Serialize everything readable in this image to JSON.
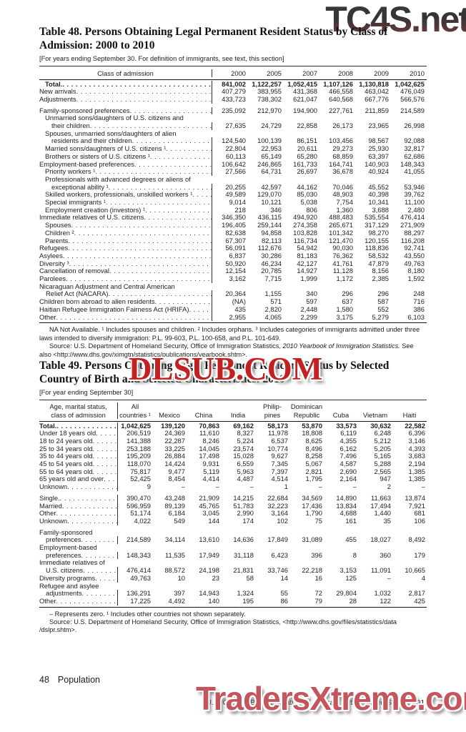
{
  "watermarks": {
    "top": "TC4S.net",
    "middle": "DLSUB.COM",
    "bottom": "TradersXtreme.com"
  },
  "table48": {
    "title": [
      "Table 48. Persons Obtaining Legal Permanent Resident Status by Class of",
      "Admission: 2000 to 2010"
    ],
    "note": "[For years ending September 30. For definition of immigrants, see text, this section]",
    "header": {
      "stub": [
        "Class of admission"
      ],
      "lines": [
        [
          "2000",
          "2005",
          "2007",
          "2008",
          "2009",
          "2010"
        ]
      ]
    },
    "rows": [
      {
        "lines": [
          "Total."
        ],
        "indent": 1,
        "bold": true,
        "values": [
          "841,002",
          "1,122,257",
          "1,052,415",
          "1,107,126",
          "1,130,818",
          "1,042,625"
        ]
      },
      {
        "lines": [
          "New arrivals"
        ],
        "values": [
          "407,279",
          "383,955",
          "431,368",
          "466,558",
          "463,042",
          "476,049"
        ]
      },
      {
        "lines": [
          "Adjustments"
        ],
        "values": [
          "433,723",
          "738,302",
          "621,047",
          "640,568",
          "667,776",
          "566,576"
        ]
      },
      {
        "gap": true,
        "lines": [
          "Family-sponsored preferences"
        ],
        "values": [
          "235,092",
          "212,970",
          "194,900",
          "227,761",
          "211,859",
          "214,589"
        ]
      },
      {
        "indent": 1,
        "lines": [
          "Unmarried sons/daughters of U.S. citizens and",
          "their children"
        ],
        "values": [
          "27,635",
          "24,729",
          "22,858",
          "26,173",
          "23,965",
          "26,998"
        ]
      },
      {
        "indent": 1,
        "lines": [
          "Spouses, unmarried sons/daughters of alien",
          "residents and their children"
        ],
        "values": [
          "124,540",
          "100,139",
          "86,151",
          "103,456",
          "98,567",
          "92,088"
        ]
      },
      {
        "indent": 1,
        "lines": [
          "Married sons/daughters of U.S. citizens ¹"
        ],
        "values": [
          "22,804",
          "22,953",
          "20,611",
          "29,273",
          "25,930",
          "32,817"
        ]
      },
      {
        "indent": 1,
        "lines": [
          "Brothers or sisters of U.S. citizens ¹"
        ],
        "values": [
          "60,113",
          "65,149",
          "65,280",
          "68,859",
          "63,397",
          "62,686"
        ]
      },
      {
        "lines": [
          "Employment-based preferences"
        ],
        "values": [
          "106,642",
          "246,865",
          "161,733",
          "164,741",
          "140,903",
          "148,343"
        ]
      },
      {
        "indent": 1,
        "lines": [
          "Priority workers ¹"
        ],
        "values": [
          "27,566",
          "64,731",
          "26,697",
          "36,678",
          "40,924",
          "41,055"
        ]
      },
      {
        "indent": 1,
        "lines": [
          "Professionals with advanced degrees or aliens of",
          "exceptional ability ¹"
        ],
        "values": [
          "20,255",
          "42,597",
          "44,162",
          "70,046",
          "45,552",
          "53,946"
        ]
      },
      {
        "indent": 1,
        "lines": [
          "Skilled workers, professionals, unskilled workers ¹"
        ],
        "values": [
          "49,589",
          "129,070",
          "85,030",
          "48,903",
          "40,398",
          "39,762"
        ]
      },
      {
        "indent": 1,
        "lines": [
          "Special immigrants ¹"
        ],
        "values": [
          "9,014",
          "10,121",
          "5,038",
          "7,754",
          "10,341",
          "11,100"
        ]
      },
      {
        "indent": 1,
        "lines": [
          "Employment creation (investors) ¹"
        ],
        "values": [
          "218",
          "346",
          "806",
          "1,360",
          "3,688",
          "2,480"
        ]
      },
      {
        "lines": [
          "Immediate relatives of U.S. citizens"
        ],
        "values": [
          "346,350",
          "436,115",
          "494,920",
          "488,483",
          "535,554",
          "476,414"
        ]
      },
      {
        "indent": 1,
        "lines": [
          "Spouses"
        ],
        "values": [
          "196,405",
          "259,144",
          "274,358",
          "265,671",
          "317,129",
          "271,909"
        ]
      },
      {
        "indent": 1,
        "lines": [
          "Children ²"
        ],
        "values": [
          "82,638",
          "94,858",
          "103,828",
          "101,342",
          "98,270",
          "88,297"
        ]
      },
      {
        "indent": 1,
        "lines": [
          "Parents"
        ],
        "values": [
          "67,307",
          "82,113",
          "116,734",
          "121,470",
          "120,155",
          "116,208"
        ]
      },
      {
        "lines": [
          "Refugees"
        ],
        "values": [
          "56,091",
          "112,676",
          "54,942",
          "90,030",
          "118,836",
          "92,741"
        ]
      },
      {
        "lines": [
          "Asylees"
        ],
        "values": [
          "6,837",
          "30,286",
          "81,183",
          "76,362",
          "58,532",
          "43,550"
        ]
      },
      {
        "lines": [
          "Diversity ³"
        ],
        "values": [
          "50,920",
          "46,234",
          "42,127",
          "41,761",
          "47,879",
          "49,763"
        ]
      },
      {
        "lines": [
          "Cancellation of removal"
        ],
        "values": [
          "12,154",
          "20,785",
          "14,927",
          "11,128",
          "8,156",
          "8,180"
        ]
      },
      {
        "lines": [
          "Parolees"
        ],
        "values": [
          "3,162",
          "7,715",
          "1,999",
          "1,172",
          "2,385",
          "1,592"
        ]
      },
      {
        "lines": [
          "Nicaraguan Adjustment and Central American",
          "Relief Act (NACARA)"
        ],
        "values": [
          "20,364",
          "1,155",
          "340",
          "296",
          "296",
          "248"
        ]
      },
      {
        "lines": [
          "Children born abroad to alien residents"
        ],
        "values": [
          "(NA)",
          "571",
          "597",
          "637",
          "587",
          "716"
        ]
      },
      {
        "lines": [
          "Haitian Refugee Immigration Fairness Act (HRIFA)"
        ],
        "values": [
          "435",
          "2,820",
          "2,448",
          "1,580",
          "552",
          "386"
        ]
      },
      {
        "lines": [
          "Other"
        ],
        "values": [
          "2,955",
          "4,065",
          "2,299",
          "3,175",
          "5,279",
          "6,103"
        ]
      }
    ],
    "footnote1": "NA Not Available. ¹ Includes spouses and children. ² Includes orphans. ³ Includes categories of immigrants admitted under three laws intended to diversify immigration: P.L. 99-603, P.L. 100-658, and P.L. 101-649.",
    "source_prefix": "Source: U.S. Department of Homeland Security, Office of Immigration Statistics, ",
    "source_italic": "2010 Yearbook of Immigration Statistics.",
    "source_suffix": " See also <http://www.dhs.gov/ximgtn/statistics/publications/yearbook.shtm>."
  },
  "table49": {
    "title": [
      "Table 49. Persons Obtaining Legal Permanent Resident Status by Selected",
      "Country of Birth and Selected Characteristics: 2010"
    ],
    "note": "[For year ending September 30]",
    "header": {
      "stub": [
        "Age, marital status,",
        "class of admission"
      ],
      "lines": [
        [
          "All",
          "",
          "",
          "",
          "Philip-",
          "Dominican",
          "",
          "",
          ""
        ],
        [
          "countries ¹",
          "Mexico",
          "China",
          "India",
          "pines",
          "Republic",
          "Cuba",
          "Vietnam",
          "Haiti"
        ]
      ]
    },
    "rows": [
      {
        "lines": [
          "Total."
        ],
        "bold": true,
        "values": [
          "1,042,625",
          "139,120",
          "70,863",
          "69,162",
          "58,173",
          "53,870",
          "33,573",
          "30,632",
          "22,582"
        ]
      },
      {
        "lines": [
          "Under 18 years old"
        ],
        "values": [
          "206,519",
          "24,369",
          "11,610",
          "8,327",
          "11,978",
          "18,808",
          "6,119",
          "6,248",
          "6,396"
        ]
      },
      {
        "lines": [
          "18 to 24 years old"
        ],
        "values": [
          "141,388",
          "22,287",
          "8,246",
          "5,224",
          "6,537",
          "8,625",
          "4,355",
          "5,212",
          "3,146"
        ]
      },
      {
        "lines": [
          "25 to 34 years old"
        ],
        "values": [
          "253,188",
          "33,225",
          "14,045",
          "23,574",
          "10,774",
          "8,496",
          "6,162",
          "5,205",
          "4,393"
        ]
      },
      {
        "lines": [
          "35 to 44 years old"
        ],
        "values": [
          "195,209",
          "26,884",
          "17,498",
          "15,028",
          "9,627",
          "8,258",
          "7,496",
          "5,165",
          "3,683"
        ]
      },
      {
        "lines": [
          "45 to 54 years old"
        ],
        "values": [
          "118,070",
          "14,424",
          "9,931",
          "6,559",
          "7,345",
          "5,067",
          "4,587",
          "5,288",
          "2,194"
        ]
      },
      {
        "lines": [
          "55 to 64 years old"
        ],
        "values": [
          "75,817",
          "9,477",
          "5,119",
          "5,963",
          "7,397",
          "2,821",
          "2,690",
          "2,565",
          "1,385"
        ]
      },
      {
        "lines": [
          "65 years old and over"
        ],
        "values": [
          "52,425",
          "8,454",
          "4,414",
          "4,487",
          "4,514",
          "1,795",
          "2,164",
          "947",
          "1,385"
        ]
      },
      {
        "lines": [
          "Unknown"
        ],
        "values": [
          "9",
          "–",
          "–",
          "–",
          "1",
          "–",
          "–",
          "2",
          "–"
        ]
      },
      {
        "gap": true,
        "lines": [
          "Single."
        ],
        "values": [
          "390,470",
          "43,248",
          "21,909",
          "14,215",
          "22,684",
          "34,569",
          "14,890",
          "11,663",
          "13,874"
        ]
      },
      {
        "lines": [
          "Married"
        ],
        "values": [
          "596,959",
          "89,139",
          "45,765",
          "51,783",
          "32,223",
          "17,436",
          "13,834",
          "17,494",
          "7,921"
        ]
      },
      {
        "lines": [
          "Other"
        ],
        "values": [
          "51,174",
          "6,184",
          "3,045",
          "2,990",
          "3,164",
          "1,790",
          "4,688",
          "1,440",
          "681"
        ]
      },
      {
        "lines": [
          "Unknown"
        ],
        "values": [
          "4,022",
          "549",
          "144",
          "174",
          "102",
          "75",
          "161",
          "35",
          "106"
        ]
      },
      {
        "gap": true,
        "lines": [
          "Family-sponsored",
          "preferences"
        ],
        "values": [
          "214,589",
          "34,114",
          "13,610",
          "14,636",
          "17,849",
          "31,089",
          "455",
          "18,027",
          "8,492"
        ]
      },
      {
        "lines": [
          "Employment-based",
          "preferences"
        ],
        "values": [
          "148,343",
          "11,535",
          "17,949",
          "31,118",
          "6,423",
          "396",
          "8",
          "360",
          "179"
        ]
      },
      {
        "lines": [
          "Immediate relatives of",
          "U.S. citizens"
        ],
        "values": [
          "476,414",
          "88,572",
          "24,198",
          "21,831",
          "33,746",
          "22,218",
          "3,153",
          "11,091",
          "10,665"
        ]
      },
      {
        "lines": [
          "Diversity programs"
        ],
        "values": [
          "49,763",
          "10",
          "23",
          "58",
          "14",
          "16",
          "125",
          "–",
          "4"
        ]
      },
      {
        "lines": [
          "Refugee and asylee",
          "adjustments"
        ],
        "values": [
          "136,291",
          "397",
          "14,943",
          "1,324",
          "55",
          "72",
          "29,804",
          "1,032",
          "2,817"
        ]
      },
      {
        "lines": [
          "Other"
        ],
        "values": [
          "17,225",
          "4,492",
          "140",
          "195",
          "86",
          "79",
          "28",
          "122",
          "425"
        ]
      }
    ],
    "footnote1": "– Represents zero. ¹ Includes other countries not shown separately.",
    "footnote2": "Source: U.S. Department of Homeland Security, Office of Immigration Statistics, <http://www.dhs.gov/files/statistics/data /dslpr.shtm>."
  },
  "footer": {
    "page_number": "48",
    "section": "Population",
    "source": "U.S. Census Bureau, Statistical Abstract of the United States: 2012"
  }
}
